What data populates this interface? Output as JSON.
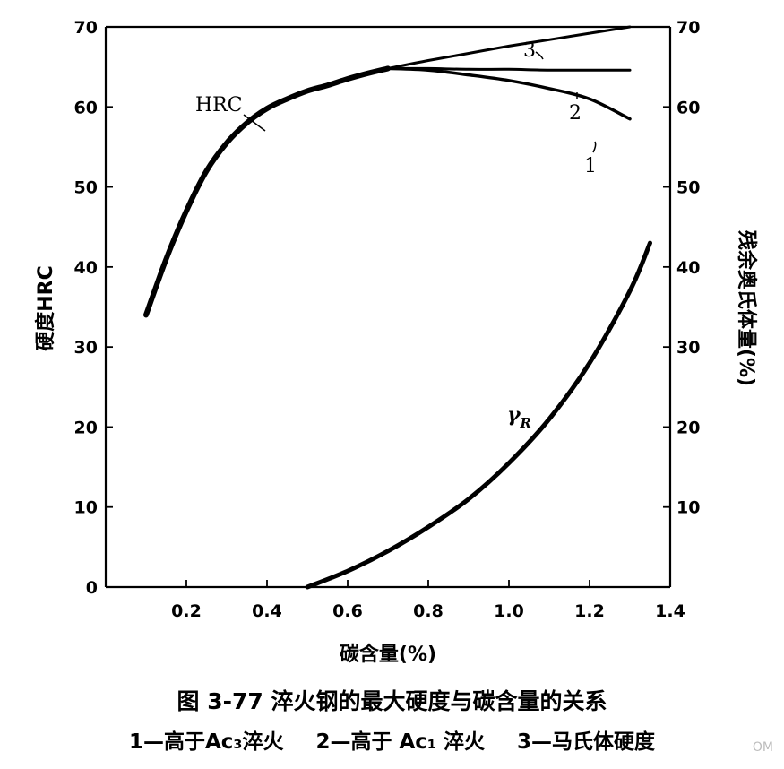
{
  "chart_data": {
    "type": "line",
    "xlabel": "碳含量(%)",
    "ylabel": "硬度HRC",
    "y2label": "残余奥氏体量(%)",
    "xlim": [
      0.0,
      1.4
    ],
    "ylim": [
      0,
      70
    ],
    "y2lim": [
      0,
      70
    ],
    "x_ticks": [
      "0.2",
      "0.4",
      "0.6",
      "0.8",
      "1.0",
      "1.2",
      "1.4"
    ],
    "y_ticks": [
      "0",
      "10",
      "20",
      "30",
      "40",
      "50",
      "60",
      "70"
    ],
    "y2_ticks": [
      "10",
      "20",
      "30",
      "40",
      "50",
      "60",
      "70"
    ],
    "series": [
      {
        "name": "HRC",
        "axis": "left",
        "points": [
          [
            0.1,
            34
          ],
          [
            0.15,
            41
          ],
          [
            0.2,
            47
          ],
          [
            0.25,
            52
          ],
          [
            0.3,
            55.5
          ],
          [
            0.35,
            58
          ],
          [
            0.4,
            59.8
          ],
          [
            0.45,
            61
          ],
          [
            0.5,
            62
          ],
          [
            0.55,
            62.7
          ],
          [
            0.6,
            63.5
          ],
          [
            0.65,
            64.2
          ],
          [
            0.7,
            64.8
          ]
        ]
      },
      {
        "name": "1",
        "axis": "left",
        "points": [
          [
            0.7,
            64.8
          ],
          [
            0.8,
            64.6
          ],
          [
            0.9,
            64
          ],
          [
            1.0,
            63.3
          ],
          [
            1.1,
            62.3
          ],
          [
            1.2,
            61
          ],
          [
            1.3,
            58.5
          ]
        ]
      },
      {
        "name": "2",
        "axis": "left",
        "points": [
          [
            0.7,
            64.8
          ],
          [
            0.8,
            64.8
          ],
          [
            0.9,
            64.7
          ],
          [
            1.0,
            64.7
          ],
          [
            1.1,
            64.6
          ],
          [
            1.2,
            64.6
          ],
          [
            1.3,
            64.6
          ]
        ]
      },
      {
        "name": "3",
        "axis": "left",
        "points": [
          [
            0.7,
            64.8
          ],
          [
            0.8,
            65.8
          ],
          [
            0.9,
            66.7
          ],
          [
            1.0,
            67.6
          ],
          [
            1.1,
            68.4
          ],
          [
            1.2,
            69.2
          ],
          [
            1.3,
            70
          ]
        ]
      },
      {
        "name": "γR",
        "axis": "right",
        "points": [
          [
            0.5,
            0
          ],
          [
            0.6,
            2
          ],
          [
            0.7,
            4.5
          ],
          [
            0.8,
            7.5
          ],
          [
            0.9,
            11
          ],
          [
            1.0,
            15.5
          ],
          [
            1.1,
            21
          ],
          [
            1.2,
            28
          ],
          [
            1.3,
            37
          ],
          [
            1.35,
            43
          ]
        ]
      }
    ],
    "labels": {
      "hrc": "HRC",
      "c1": "1",
      "c2": "2",
      "c3": "3",
      "gamma_main": "γ",
      "gamma_sub": "R"
    },
    "grid": false
  },
  "caption": {
    "title": "图 3-77   淬火钢的最大硬度与碳含量的关系",
    "legend_1": "1—高于Ac₃淬火",
    "legend_2": "2—高于 Ac₁ 淬火",
    "legend_3": "3—马氏体硬度"
  },
  "watermark": "OM"
}
